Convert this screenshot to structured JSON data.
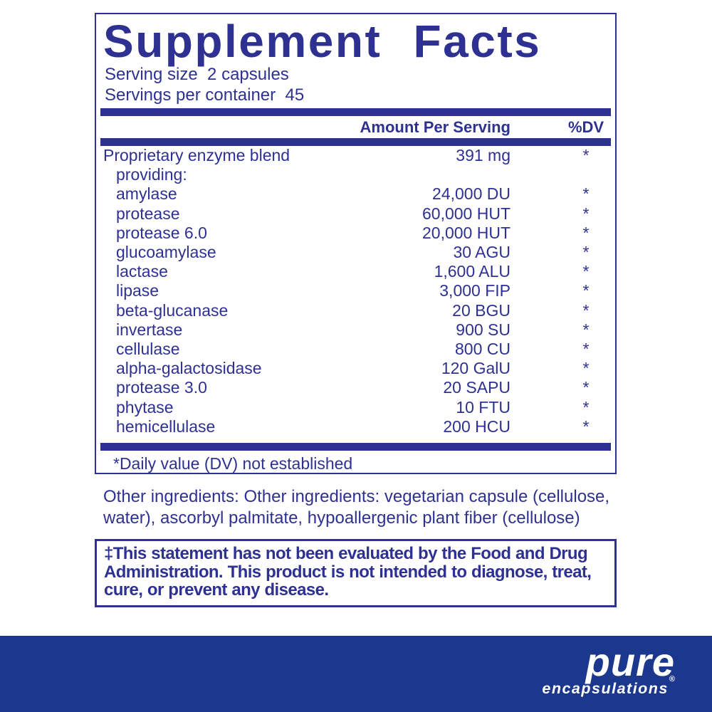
{
  "colors": {
    "navy_text": "#2E3192",
    "band_blue": "#1B388E",
    "logo_white": "#ffffff"
  },
  "panel": {
    "title": "Supplement Facts",
    "serving_size": "Serving size  2 capsules",
    "servings_per_container": "Servings per container  45",
    "columns": {
      "amount": "Amount Per Serving",
      "dv": "%DV"
    },
    "rows": [
      {
        "name": "Proprietary enzyme blend",
        "amount": "391 mg",
        "dv": "*",
        "indent": false
      },
      {
        "name": "providing:",
        "amount": "",
        "dv": "",
        "indent": true
      },
      {
        "name": "amylase",
        "amount": "24,000 DU",
        "dv": "*",
        "indent": true
      },
      {
        "name": "protease",
        "amount": "60,000 HUT",
        "dv": "*",
        "indent": true
      },
      {
        "name": "protease 6.0",
        "amount": "20,000 HUT",
        "dv": "*",
        "indent": true
      },
      {
        "name": "glucoamylase",
        "amount": "30 AGU",
        "dv": "*",
        "indent": true
      },
      {
        "name": "lactase",
        "amount": "1,600 ALU",
        "dv": "*",
        "indent": true
      },
      {
        "name": "lipase",
        "amount": "3,000 FIP",
        "dv": "*",
        "indent": true
      },
      {
        "name": "beta-glucanase",
        "amount": "20 BGU",
        "dv": "*",
        "indent": true
      },
      {
        "name": "invertase",
        "amount": "900 SU",
        "dv": "*",
        "indent": true
      },
      {
        "name": "cellulase",
        "amount": "800 CU",
        "dv": "*",
        "indent": true
      },
      {
        "name": "alpha-galactosidase",
        "amount": "120 GalU",
        "dv": "*",
        "indent": true
      },
      {
        "name": "protease 3.0",
        "amount": "20 SAPU",
        "dv": "*",
        "indent": true
      },
      {
        "name": "phytase",
        "amount": "10 FTU",
        "dv": "*",
        "indent": true
      },
      {
        "name": "hemicellulase",
        "amount": "200 HCU",
        "dv": "*",
        "indent": true
      }
    ],
    "footnote": "*Daily value (DV) not established"
  },
  "other_ingredients": "Other ingredients: Other ingredients: vegetarian capsule (cellulose, water), ascorbyl palmitate, hypoallergenic plant fiber (cellulose)",
  "disclaimer": "‡This statement has not been evaluated by the Food and Drug Administration. This product is not intended to diagnose, treat, cure, or prevent any disease.",
  "brand": {
    "name": "pure",
    "sub": "encapsulations",
    "registered_mark": "®"
  }
}
